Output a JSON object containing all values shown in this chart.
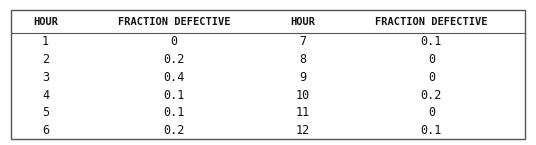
{
  "col_headers": [
    "HOUR",
    "FRACTION DEFECTIVE",
    "HOUR",
    "FRACTION DEFECTIVE"
  ],
  "rows": [
    [
      "1",
      "0",
      "7",
      "0.1"
    ],
    [
      "2",
      "0.2",
      "8",
      "0"
    ],
    [
      "3",
      "0.4",
      "9",
      "0"
    ],
    [
      "4",
      "0.1",
      "10",
      "0.2"
    ],
    [
      "5",
      "0.1",
      "11",
      "0"
    ],
    [
      "6",
      "0.2",
      "12",
      "0.1"
    ]
  ],
  "background_color": "#ffffff",
  "border_color": "#555555",
  "text_color": "#111111",
  "header_fontsize": 7.5,
  "data_fontsize": 8.5,
  "fig_width": 5.36,
  "fig_height": 1.45,
  "dpi": 100
}
